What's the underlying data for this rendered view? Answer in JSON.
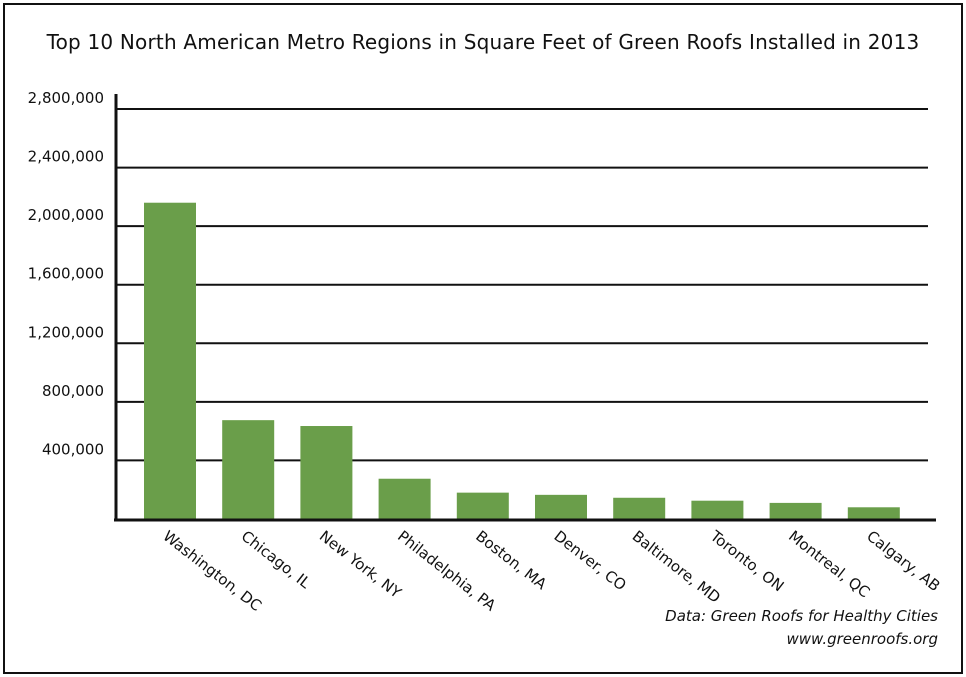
{
  "chart_data": {
    "type": "bar",
    "title": "Top 10 North American Metro Regions in Square Feet of Green Roofs Installed in 2013",
    "xlabel": "",
    "ylabel": "",
    "categories": [
      "Washington, DC",
      "Chicago, IL",
      "New York, NY",
      "Philadelphia, PA",
      "Boston, MA",
      "Denver, CO",
      "Baltimore, MD",
      "Toronto, ON",
      "Montreal, QC",
      "Calgary, AB"
    ],
    "values": [
      2160000,
      675000,
      635000,
      275000,
      180000,
      165000,
      145000,
      125000,
      110000,
      80000
    ],
    "ylim": [
      0,
      2800000
    ],
    "yticks": [
      400000,
      800000,
      1200000,
      1600000,
      2000000,
      2400000,
      2800000
    ],
    "ytick_labels": [
      "400,000",
      "800,000",
      "1,200,000",
      "1,600,000",
      "2,000,000",
      "2,400,000",
      "2,800,000"
    ],
    "bar_color": "#6a9e4a",
    "grid": true
  },
  "source": {
    "line1": "Data: Green Roofs for Healthy Cities",
    "line2": "www.greenroofs.org"
  }
}
